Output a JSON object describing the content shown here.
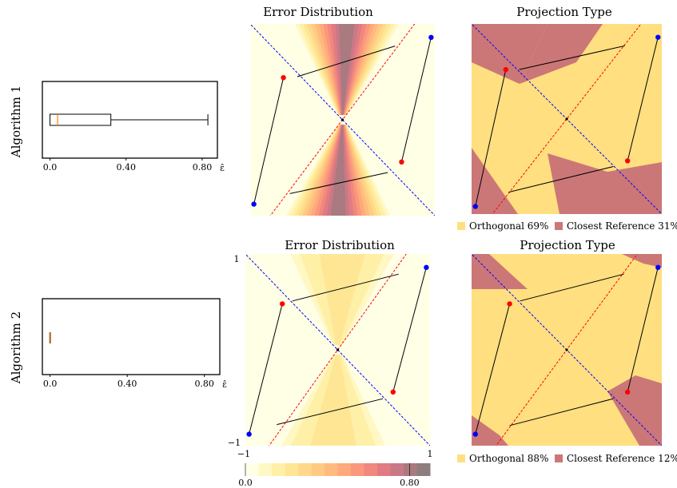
{
  "rows": [
    {
      "label": "Algorithm 1",
      "boxplot": {
        "x_ticks": [
          "0.0",
          "0.40",
          "0.80"
        ],
        "tick_values": [
          0.0,
          0.4,
          0.8
        ],
        "xlabel": "ε̂",
        "xlim": [
          -0.04,
          0.88
        ],
        "whisker_low": 0.0,
        "q1": 0.0,
        "median": 0.04,
        "q3": 0.32,
        "whisker_high": 0.83
      },
      "error_panel": {
        "title": "Error Distribution",
        "axis_ticks": [],
        "blue_line": [
          [
            -1.05,
            1.05
          ],
          [
            1.05,
            -1.05
          ]
        ],
        "red_line": [
          [
            -0.82,
            -1.05
          ],
          [
            0.82,
            1.05
          ]
        ],
        "blue_points": [
          [
            -0.96,
            -0.88
          ],
          [
            0.96,
            0.86
          ]
        ],
        "red_points": [
          [
            -0.64,
            0.44
          ],
          [
            0.64,
            -0.44
          ]
        ],
        "segments": [
          [
            [
              -0.96,
              -0.88
            ],
            [
              -0.64,
              0.44
            ]
          ],
          [
            [
              0.96,
              0.86
            ],
            [
              0.64,
              -0.44
            ]
          ],
          [
            [
              -0.49,
              0.45
            ],
            [
              0.57,
              0.77
            ]
          ],
          [
            [
              -0.57,
              -0.77
            ],
            [
              0.49,
              -0.55
            ]
          ]
        ],
        "center": [
          0,
          0
        ]
      },
      "projection_panel": {
        "title": "Projection Type",
        "blue_points": [
          [
            -0.96,
            -0.92
          ],
          [
            0.96,
            0.86
          ]
        ],
        "red_points": [
          [
            -0.64,
            0.52
          ],
          [
            0.64,
            -0.44
          ]
        ],
        "segments": [
          [
            [
              -0.96,
              -0.92
            ],
            [
              -0.64,
              0.52
            ]
          ],
          [
            [
              0.96,
              0.86
            ],
            [
              0.64,
              -0.44
            ]
          ],
          [
            [
              -0.5,
              0.52
            ],
            [
              0.61,
              0.77
            ]
          ],
          [
            [
              -0.61,
              -0.77
            ],
            [
              0.49,
              -0.5
            ]
          ]
        ],
        "legend": [
          {
            "label": "Orthogonal 69%",
            "color": "#ffdf80"
          },
          {
            "label": "Closest Reference 31%",
            "color": "#cc7777"
          }
        ]
      }
    },
    {
      "label": "Algorithm 2",
      "boxplot": {
        "x_ticks": [
          "0.0",
          "0.40",
          "0.80"
        ],
        "tick_values": [
          0.0,
          0.4,
          0.8
        ],
        "xlabel": "ε̂",
        "xlim": [
          -0.04,
          0.88
        ],
        "whisker_low": 0.0,
        "q1": 0.0,
        "median": 0.0,
        "q3": 0.0,
        "whisker_high": 0.0
      },
      "error_panel": {
        "title": "Error Distribution",
        "axis_ticks": [
          "1",
          "−1",
          "−1",
          "1"
        ],
        "blue_line": [
          [
            -1.05,
            1.05
          ],
          [
            1.05,
            -1.05
          ]
        ],
        "red_line": [
          [
            -0.78,
            -1.05
          ],
          [
            0.78,
            1.05
          ]
        ],
        "blue_points": [
          [
            -0.96,
            -0.88
          ],
          [
            0.96,
            0.86
          ]
        ],
        "red_points": [
          [
            -0.6,
            0.48
          ],
          [
            0.6,
            -0.44
          ]
        ],
        "segments": [
          [
            [
              -0.96,
              -0.88
            ],
            [
              -0.6,
              0.48
            ]
          ],
          [
            [
              0.96,
              0.86
            ],
            [
              0.6,
              -0.44
            ]
          ],
          [
            [
              -0.49,
              0.51
            ],
            [
              0.66,
              0.79
            ]
          ],
          [
            [
              -0.66,
              -0.78
            ],
            [
              0.49,
              -0.51
            ]
          ]
        ],
        "center": [
          0,
          0
        ]
      },
      "projection_panel": {
        "title": "Projection Type",
        "blue_points": [
          [
            -0.96,
            -0.88
          ],
          [
            0.96,
            0.86
          ]
        ],
        "red_points": [
          [
            -0.6,
            0.48
          ],
          [
            0.64,
            -0.44
          ]
        ],
        "segments": [
          [
            [
              -0.96,
              -0.88
            ],
            [
              -0.6,
              0.48
            ]
          ],
          [
            [
              0.96,
              0.86
            ],
            [
              0.64,
              -0.44
            ]
          ],
          [
            [
              -0.49,
              0.51
            ],
            [
              0.6,
              0.79
            ]
          ],
          [
            [
              -0.6,
              -0.79
            ],
            [
              0.49,
              -0.51
            ]
          ]
        ],
        "legend": [
          {
            "label": "Orthogonal 88%",
            "color": "#ffdf80"
          },
          {
            "label": "Closest Reference 12%",
            "color": "#cc7777"
          }
        ]
      }
    }
  ],
  "colorbar": {
    "tick_labels": [
      "0.0",
      "0.80"
    ],
    "tick_values": [
      0.0,
      0.8
    ],
    "range": [
      0.0,
      0.9
    ],
    "colors": [
      "#ffffe6",
      "#fff8c4",
      "#fff0a8",
      "#ffe694",
      "#ffd98a",
      "#ffca82",
      "#ffbb7e",
      "#ffa97c",
      "#f9987c",
      "#f0887e",
      "#e27a84",
      "#c97986",
      "#a97a80",
      "#8e7d7d"
    ]
  },
  "colors": {
    "blue": "#0000ff",
    "red": "#ff0000",
    "orthogonal": "#ffdf80",
    "closest_reference": "#cc7777",
    "box_median": "#ff8000"
  },
  "chart_data": [
    {
      "type": "box",
      "row_label": "Algorithm 1",
      "xlabel": "ε̂",
      "xlim": [
        -0.04,
        0.88
      ],
      "summary": {
        "min": 0.0,
        "q1": 0.0,
        "median": 0.04,
        "q3": 0.32,
        "max": 0.83
      }
    },
    {
      "type": "heatmap",
      "title": "Error Distribution",
      "row_label": "Algorithm 1",
      "xlim": [
        -1,
        1
      ],
      "ylim": [
        -1,
        1
      ]
    },
    {
      "type": "heatmap",
      "title": "Projection Type",
      "row_label": "Algorithm 1",
      "legend": [
        "Orthogonal 69%",
        "Closest Reference 31%"
      ],
      "values": {
        "Orthogonal": 69,
        "Closest Reference": 31
      }
    },
    {
      "type": "box",
      "row_label": "Algorithm 2",
      "xlabel": "ε̂",
      "xlim": [
        -0.04,
        0.88
      ],
      "summary": {
        "min": 0.0,
        "q1": 0.0,
        "median": 0.0,
        "q3": 0.0,
        "max": 0.0
      }
    },
    {
      "type": "heatmap",
      "title": "Error Distribution",
      "row_label": "Algorithm 2",
      "xlim": [
        -1,
        1
      ],
      "ylim": [
        -1,
        1
      ],
      "colorbar": {
        "range": [
          0.0,
          0.9
        ],
        "ticks": [
          "0.0",
          "0.80"
        ]
      }
    },
    {
      "type": "heatmap",
      "title": "Projection Type",
      "row_label": "Algorithm 2",
      "legend": [
        "Orthogonal 88%",
        "Closest Reference 12%"
      ],
      "values": {
        "Orthogonal": 88,
        "Closest Reference": 12
      }
    }
  ]
}
